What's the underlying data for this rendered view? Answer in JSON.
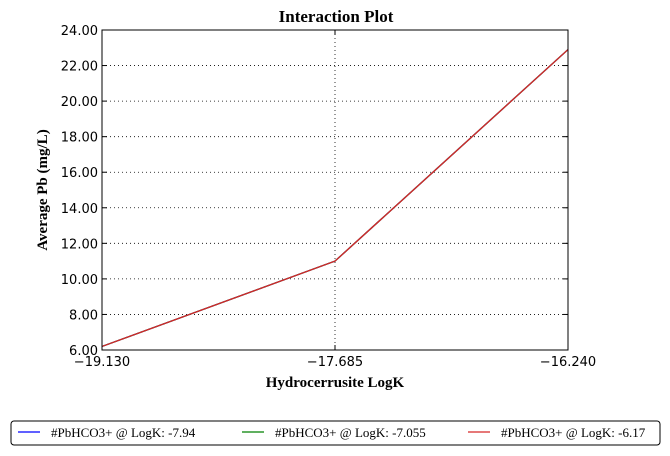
{
  "chart_data": {
    "type": "line",
    "title": "Interaction Plot",
    "xlabel": "Hydrocerrusite LogK",
    "ylabel": "Average Pb (mg/L)",
    "x": [
      -19.13,
      -17.685,
      -16.24
    ],
    "x_tick_labels": [
      "−19.130",
      "−17.685",
      "−16.240"
    ],
    "xlim": [
      -19.13,
      -16.24
    ],
    "ylim": [
      6.0,
      24.0
    ],
    "y_ticks": [
      6,
      8,
      10,
      12,
      14,
      16,
      18,
      20,
      22,
      24
    ],
    "y_tick_labels": [
      "6.00",
      "8.00",
      "10.00",
      "12.00",
      "14.00",
      "16.00",
      "18.00",
      "20.00",
      "22.00",
      "24.00"
    ],
    "grid": true,
    "legend_position": "bottom",
    "series": [
      {
        "name": "#PbHCO3+ @ LogK: -7.94",
        "color": "#0000ff",
        "values": [
          6.2,
          11.0,
          22.9
        ]
      },
      {
        "name": "#PbHCO3+ @ LogK: -7.055",
        "color": "#008000",
        "values": [
          6.2,
          11.0,
          22.9
        ]
      },
      {
        "name": "#PbHCO3+ @ LogK: -6.17",
        "color": "#d62728",
        "values": [
          6.2,
          11.0,
          22.9
        ]
      }
    ]
  }
}
